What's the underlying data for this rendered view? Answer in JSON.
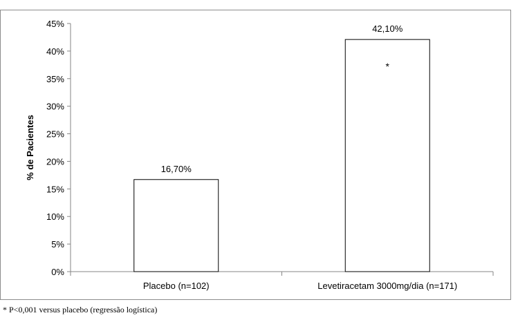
{
  "chart_data": {
    "type": "bar",
    "categories": [
      "Placebo (n=102)",
      "Levetiracetam 3000mg/dia (n=171)"
    ],
    "values": [
      16.7,
      42.1
    ],
    "data_labels": [
      "16,70%",
      "42,10%"
    ],
    "ylabel": "% de Pacientes",
    "ylim": [
      0,
      45
    ],
    "yticks": [
      0,
      5,
      10,
      15,
      20,
      25,
      30,
      35,
      40,
      45
    ],
    "ytick_labels": [
      "0%",
      "5%",
      "10%",
      "15%",
      "20%",
      "25%",
      "30%",
      "35%",
      "40%",
      "45%"
    ],
    "annotations": [
      {
        "category_index": 1,
        "text": "*"
      }
    ],
    "bar_fill": "#ffffff",
    "bar_stroke": "#000000",
    "grid": false,
    "legend": "none"
  },
  "footnote": "* P<0,001 versus placebo (regressão logística)"
}
